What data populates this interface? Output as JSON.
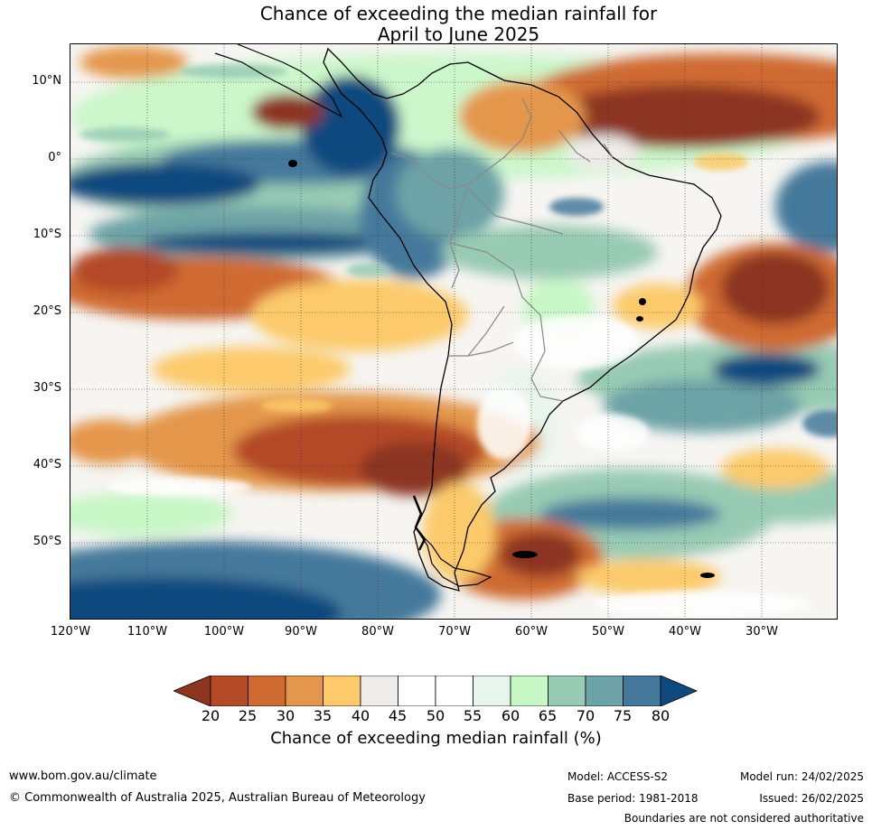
{
  "title": {
    "line1": "Chance of exceeding the median rainfall for",
    "line2": "April to June 2025"
  },
  "map": {
    "lat_labels": [
      "10°N",
      "0°",
      "10°S",
      "20°S",
      "30°S",
      "40°S",
      "50°S"
    ],
    "lon_labels": [
      "120°W",
      "110°W",
      "100°W",
      "90°W",
      "80°W",
      "70°W",
      "60°W",
      "50°W",
      "40°W",
      "30°W"
    ]
  },
  "colorbar": {
    "ticks": [
      "20",
      "25",
      "30",
      "35",
      "40",
      "45",
      "50",
      "55",
      "60",
      "65",
      "70",
      "75",
      "80"
    ],
    "colors": [
      "#8c3520",
      "#b34a26",
      "#cf6a33",
      "#e4974c",
      "#fcca6a",
      "#eeebe8",
      "#ffffff",
      "#ffffff",
      "#e8f5ec",
      "#c8f7c6",
      "#98cbb4",
      "#6da3a6",
      "#45799b",
      "#0f4a7e"
    ],
    "label": "Chance of exceeding median rainfall (%)"
  },
  "footer": {
    "url": "www.bom.gov.au/climate",
    "copyright": "© Commonwealth of Australia 2025, Australian Bureau of Meteorology",
    "model": "Model: ACCESS-S2",
    "base_period": "Base period: 1981-2018",
    "model_run": "Model run: 24/02/2025",
    "issued": "Issued: 26/02/2025",
    "disclaimer": "Boundaries are not considered authoritative"
  }
}
